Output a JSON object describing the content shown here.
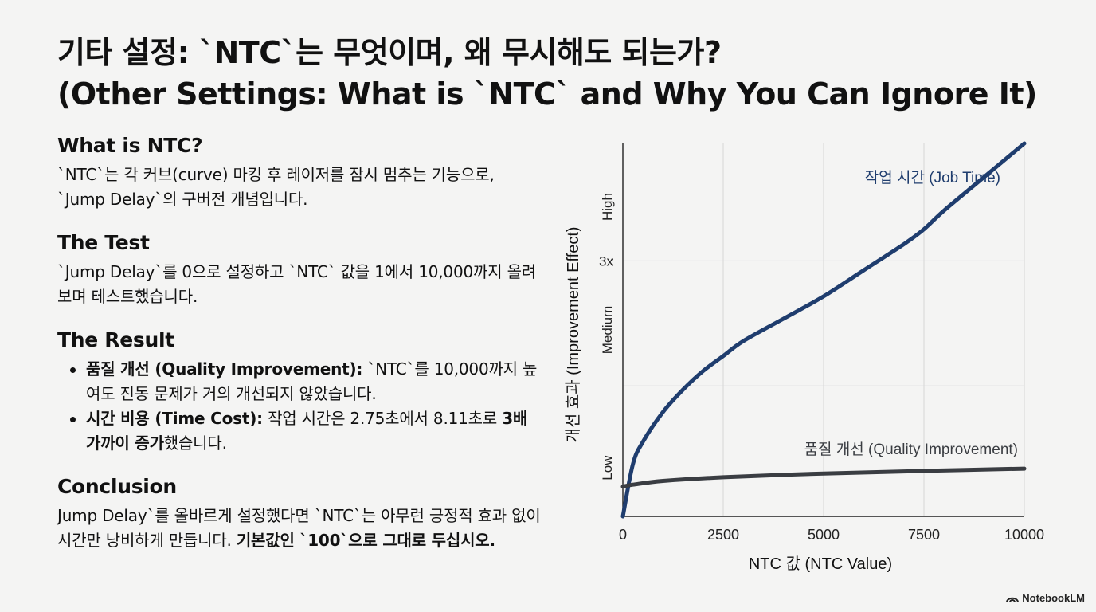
{
  "title": {
    "line1": "기타 설정: `NTC`는 무엇이며, 왜 무시해도 되는가?",
    "line2": "(Other Settings: What is `NTC` and Why You Can Ignore It)"
  },
  "sections": {
    "what": {
      "heading": "What is NTC?",
      "body": "`NTC`는 각 커브(curve) 마킹 후 레이저를 잠시 멈추는 기능으로, `Jump Delay`의 구버전 개념입니다."
    },
    "test": {
      "heading": "The Test",
      "body": "`Jump Delay`를 0으로 설정하고 `NTC` 값을 1에서 10,000까지 올려보며 테스트했습니다."
    },
    "result": {
      "heading": "The Result",
      "bullet1_bold": "품질 개선 (Quality Improvement):",
      "bullet1_text": " `NTC`를 10,000까지 높여도 진동 문제가 거의 개선되지 않았습니다.",
      "bullet2_bold": "시간 비용 (Time Cost):",
      "bullet2_text": " 작업 시간은 2.75초에서 8.11초로 ",
      "bullet2_bold2": "3배 가까이 증가",
      "bullet2_text2": "했습니다."
    },
    "conclusion": {
      "heading": "Conclusion",
      "body": "Jump Delay`를 올바르게 설정했다면 `NTC`는 아무런 긍정적 효과 없이 시간만 낭비하게 만듭니다. ",
      "body_bold": "기본값인 `100`으로 그대로 두십시오."
    }
  },
  "chart_data": {
    "type": "line",
    "xlabel": "NTC 값 (NTC Value)",
    "ylabel": "개선 효과 (Improvement Effect)",
    "xlim": [
      0,
      10000
    ],
    "xticks": [
      0,
      2500,
      5000,
      7500,
      10000
    ],
    "ytick_labels": [
      "Low",
      "Medium",
      "3x",
      "High"
    ],
    "grid": true,
    "series": [
      {
        "name": "작업 시간 (Job Time)",
        "color": "#1f3d6e",
        "x": [
          0,
          250,
          500,
          1000,
          1500,
          2000,
          2500,
          3000,
          4000,
          5000,
          6000,
          7000,
          7500,
          8000,
          9000,
          10000
        ],
        "y": [
          0.0,
          0.14,
          0.2,
          0.28,
          0.34,
          0.39,
          0.43,
          0.47,
          0.53,
          0.59,
          0.66,
          0.73,
          0.77,
          0.82,
          0.91,
          1.0
        ]
      },
      {
        "name": "품질 개선 (Quality Improvement)",
        "color": "#3a3d42",
        "x": [
          0,
          250,
          1000,
          2500,
          5000,
          7500,
          10000
        ],
        "y": [
          0.08,
          0.085,
          0.095,
          0.105,
          0.115,
          0.122,
          0.128
        ]
      }
    ]
  },
  "brand": "NotebookLM"
}
